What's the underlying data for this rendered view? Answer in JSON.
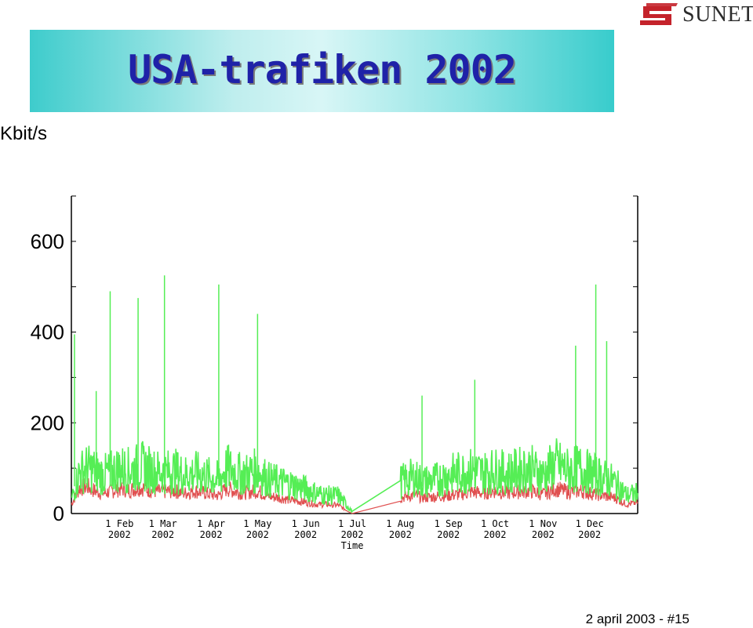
{
  "header": {
    "title": "USA-trafiken 2002"
  },
  "logo": {
    "brand": "SUNET",
    "brand_color": "#c4232b"
  },
  "footer": {
    "text": "2 april 2003 - #15"
  },
  "chart_data": {
    "type": "line",
    "title": "USA-trafiken 2002",
    "ylabel": "Kbit/s",
    "xlabel": "Time",
    "ylim": [
      0,
      700
    ],
    "y_ticks": [
      0,
      200,
      400,
      600
    ],
    "x_ticks": [
      {
        "label": "1 Feb",
        "year": "2002"
      },
      {
        "label": "1 Mar",
        "year": "2002"
      },
      {
        "label": "1 Apr",
        "year": "2002"
      },
      {
        "label": "1 May",
        "year": "2002"
      },
      {
        "label": "1 Jun",
        "year": "2002"
      },
      {
        "label": "1 Jul",
        "year": "2002"
      },
      {
        "label": "1 Aug",
        "year": "2002"
      },
      {
        "label": "1 Sep",
        "year": "2002"
      },
      {
        "label": "1 Oct",
        "year": "2002"
      },
      {
        "label": "1 Nov",
        "year": "2002"
      },
      {
        "label": "1 Dec",
        "year": "2002"
      }
    ],
    "x_tick_days": [
      31,
      59,
      90,
      120,
      151,
      181,
      212,
      243,
      273,
      304,
      334
    ],
    "xlim_days": [
      0,
      365
    ],
    "colors": {
      "in": "#e05050",
      "out": "#55ee55"
    },
    "series": [
      {
        "x_day": [
          0,
          5,
          10,
          15,
          20,
          25,
          31,
          38,
          45,
          52,
          59,
          66,
          73,
          80,
          90,
          95,
          100,
          105,
          110,
          120,
          127,
          134,
          141,
          151,
          158,
          165,
          172,
          181,
          212,
          220,
          228,
          236,
          243,
          250,
          258,
          265,
          273,
          280,
          288,
          296,
          304,
          312,
          320,
          328,
          334,
          342,
          350,
          358,
          365
        ],
        "values": [
          20,
          55,
          60,
          50,
          45,
          48,
          55,
          52,
          58,
          50,
          48,
          50,
          45,
          50,
          42,
          40,
          55,
          50,
          45,
          50,
          38,
          35,
          30,
          25,
          20,
          20,
          18,
          0,
          35,
          40,
          35,
          38,
          40,
          42,
          48,
          45,
          50,
          45,
          48,
          50,
          42,
          55,
          48,
          50,
          45,
          40,
          35,
          20,
          25
        ]
      },
      {
        "x_day": [
          0,
          5,
          10,
          15,
          20,
          25,
          31,
          38,
          45,
          52,
          59,
          66,
          73,
          80,
          90,
          95,
          100,
          105,
          110,
          120,
          127,
          134,
          141,
          151,
          158,
          165,
          172,
          181,
          212,
          220,
          228,
          236,
          243,
          250,
          258,
          265,
          273,
          280,
          288,
          296,
          304,
          312,
          320,
          328,
          334,
          342,
          350,
          358,
          365
        ],
        "values": [
          30,
          90,
          100,
          95,
          85,
          90,
          100,
          95,
          105,
          95,
          90,
          95,
          85,
          90,
          80,
          75,
          100,
          95,
          85,
          95,
          75,
          70,
          65,
          55,
          45,
          40,
          40,
          5,
          70,
          80,
          70,
          75,
          85,
          90,
          95,
          90,
          95,
          90,
          95,
          100,
          85,
          110,
          95,
          100,
          90,
          80,
          70,
          40,
          45
        ]
      }
    ],
    "spikes": [
      {
        "day": 2,
        "value": 395
      },
      {
        "day": 16,
        "value": 270
      },
      {
        "day": 25,
        "value": 490
      },
      {
        "day": 43,
        "value": 475
      },
      {
        "day": 60,
        "value": 525
      },
      {
        "day": 95,
        "value": 505
      },
      {
        "day": 120,
        "value": 440
      },
      {
        "day": 226,
        "value": 260
      },
      {
        "day": 260,
        "value": 295
      },
      {
        "day": 325,
        "value": 370
      },
      {
        "day": 338,
        "value": 505
      },
      {
        "day": 345,
        "value": 380
      }
    ]
  }
}
